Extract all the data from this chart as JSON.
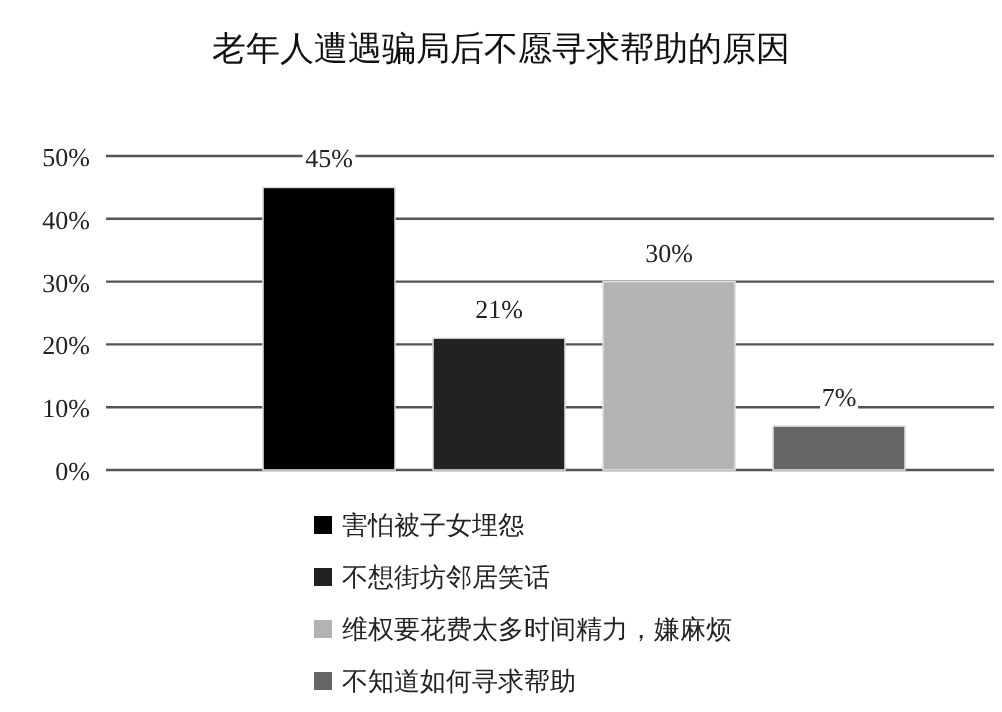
{
  "chart_data": {
    "type": "bar",
    "title": "老年人遭遇骗局后不愿寻求帮助的原因",
    "categories": [
      null
    ],
    "series": [
      {
        "name": "害怕被子女埋怨",
        "color": "#000000",
        "values": [
          45
        ],
        "value_labels": [
          "45%"
        ]
      },
      {
        "name": "不想街坊邻居笑话",
        "color": "#222222",
        "values": [
          21
        ],
        "value_labels": [
          "21%"
        ]
      },
      {
        "name": "维权要花费太多时间精力，嫌麻烦",
        "color": "#b3b3b3",
        "values": [
          30
        ],
        "value_labels": [
          "30%"
        ]
      },
      {
        "name": "不知道如何寻求帮助",
        "color": "#666666",
        "values": [
          7
        ],
        "value_labels": [
          "7%"
        ]
      }
    ],
    "ylim": [
      0,
      50
    ],
    "yticks": [
      {
        "value": 0,
        "label": "0%"
      },
      {
        "value": 10,
        "label": "10%"
      },
      {
        "value": 20,
        "label": "20%"
      },
      {
        "value": 30,
        "label": "30%"
      },
      {
        "value": 40,
        "label": "40%"
      },
      {
        "value": 50,
        "label": "50%"
      }
    ],
    "grid": "y",
    "legend": "bottom"
  }
}
